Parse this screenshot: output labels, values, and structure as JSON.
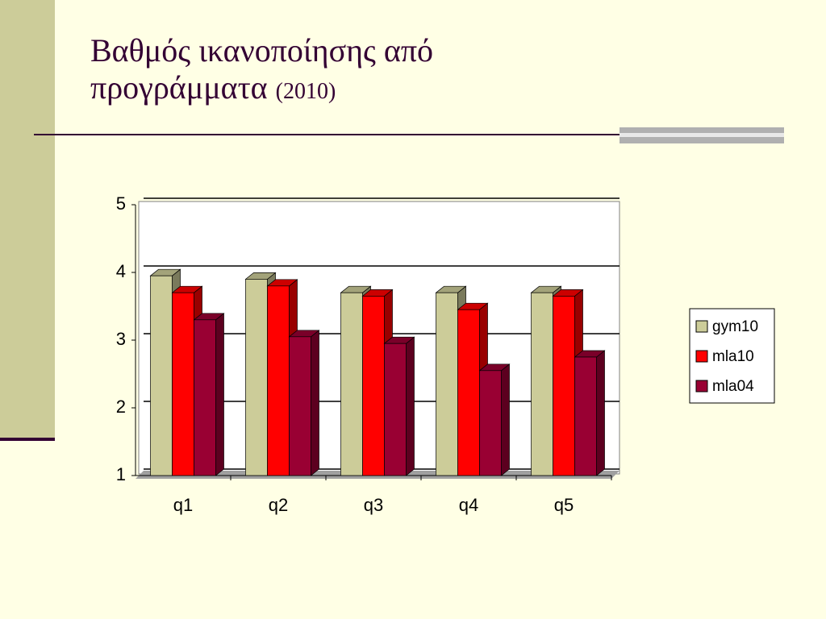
{
  "chart_data": {
    "type": "bar3d",
    "title": "Βαθμός ικανοποίησης από προγράμματα",
    "subtitle": "(2010)",
    "categories": [
      "q1",
      "q2",
      "q3",
      "q4",
      "q5"
    ],
    "series": [
      {
        "name": "gym10",
        "color": "#cccc99",
        "values": [
          3.95,
          3.9,
          3.7,
          3.7,
          3.7
        ]
      },
      {
        "name": "mla10",
        "color": "#ff0000",
        "values": [
          3.7,
          3.8,
          3.65,
          3.45,
          3.65
        ]
      },
      {
        "name": "mla04",
        "color": "#990033",
        "values": [
          3.3,
          3.05,
          2.95,
          2.55,
          2.75
        ]
      }
    ],
    "ylim": [
      1,
      5
    ],
    "yticks": [
      1,
      2,
      3,
      4,
      5
    ],
    "grid": true,
    "legend": "right"
  }
}
